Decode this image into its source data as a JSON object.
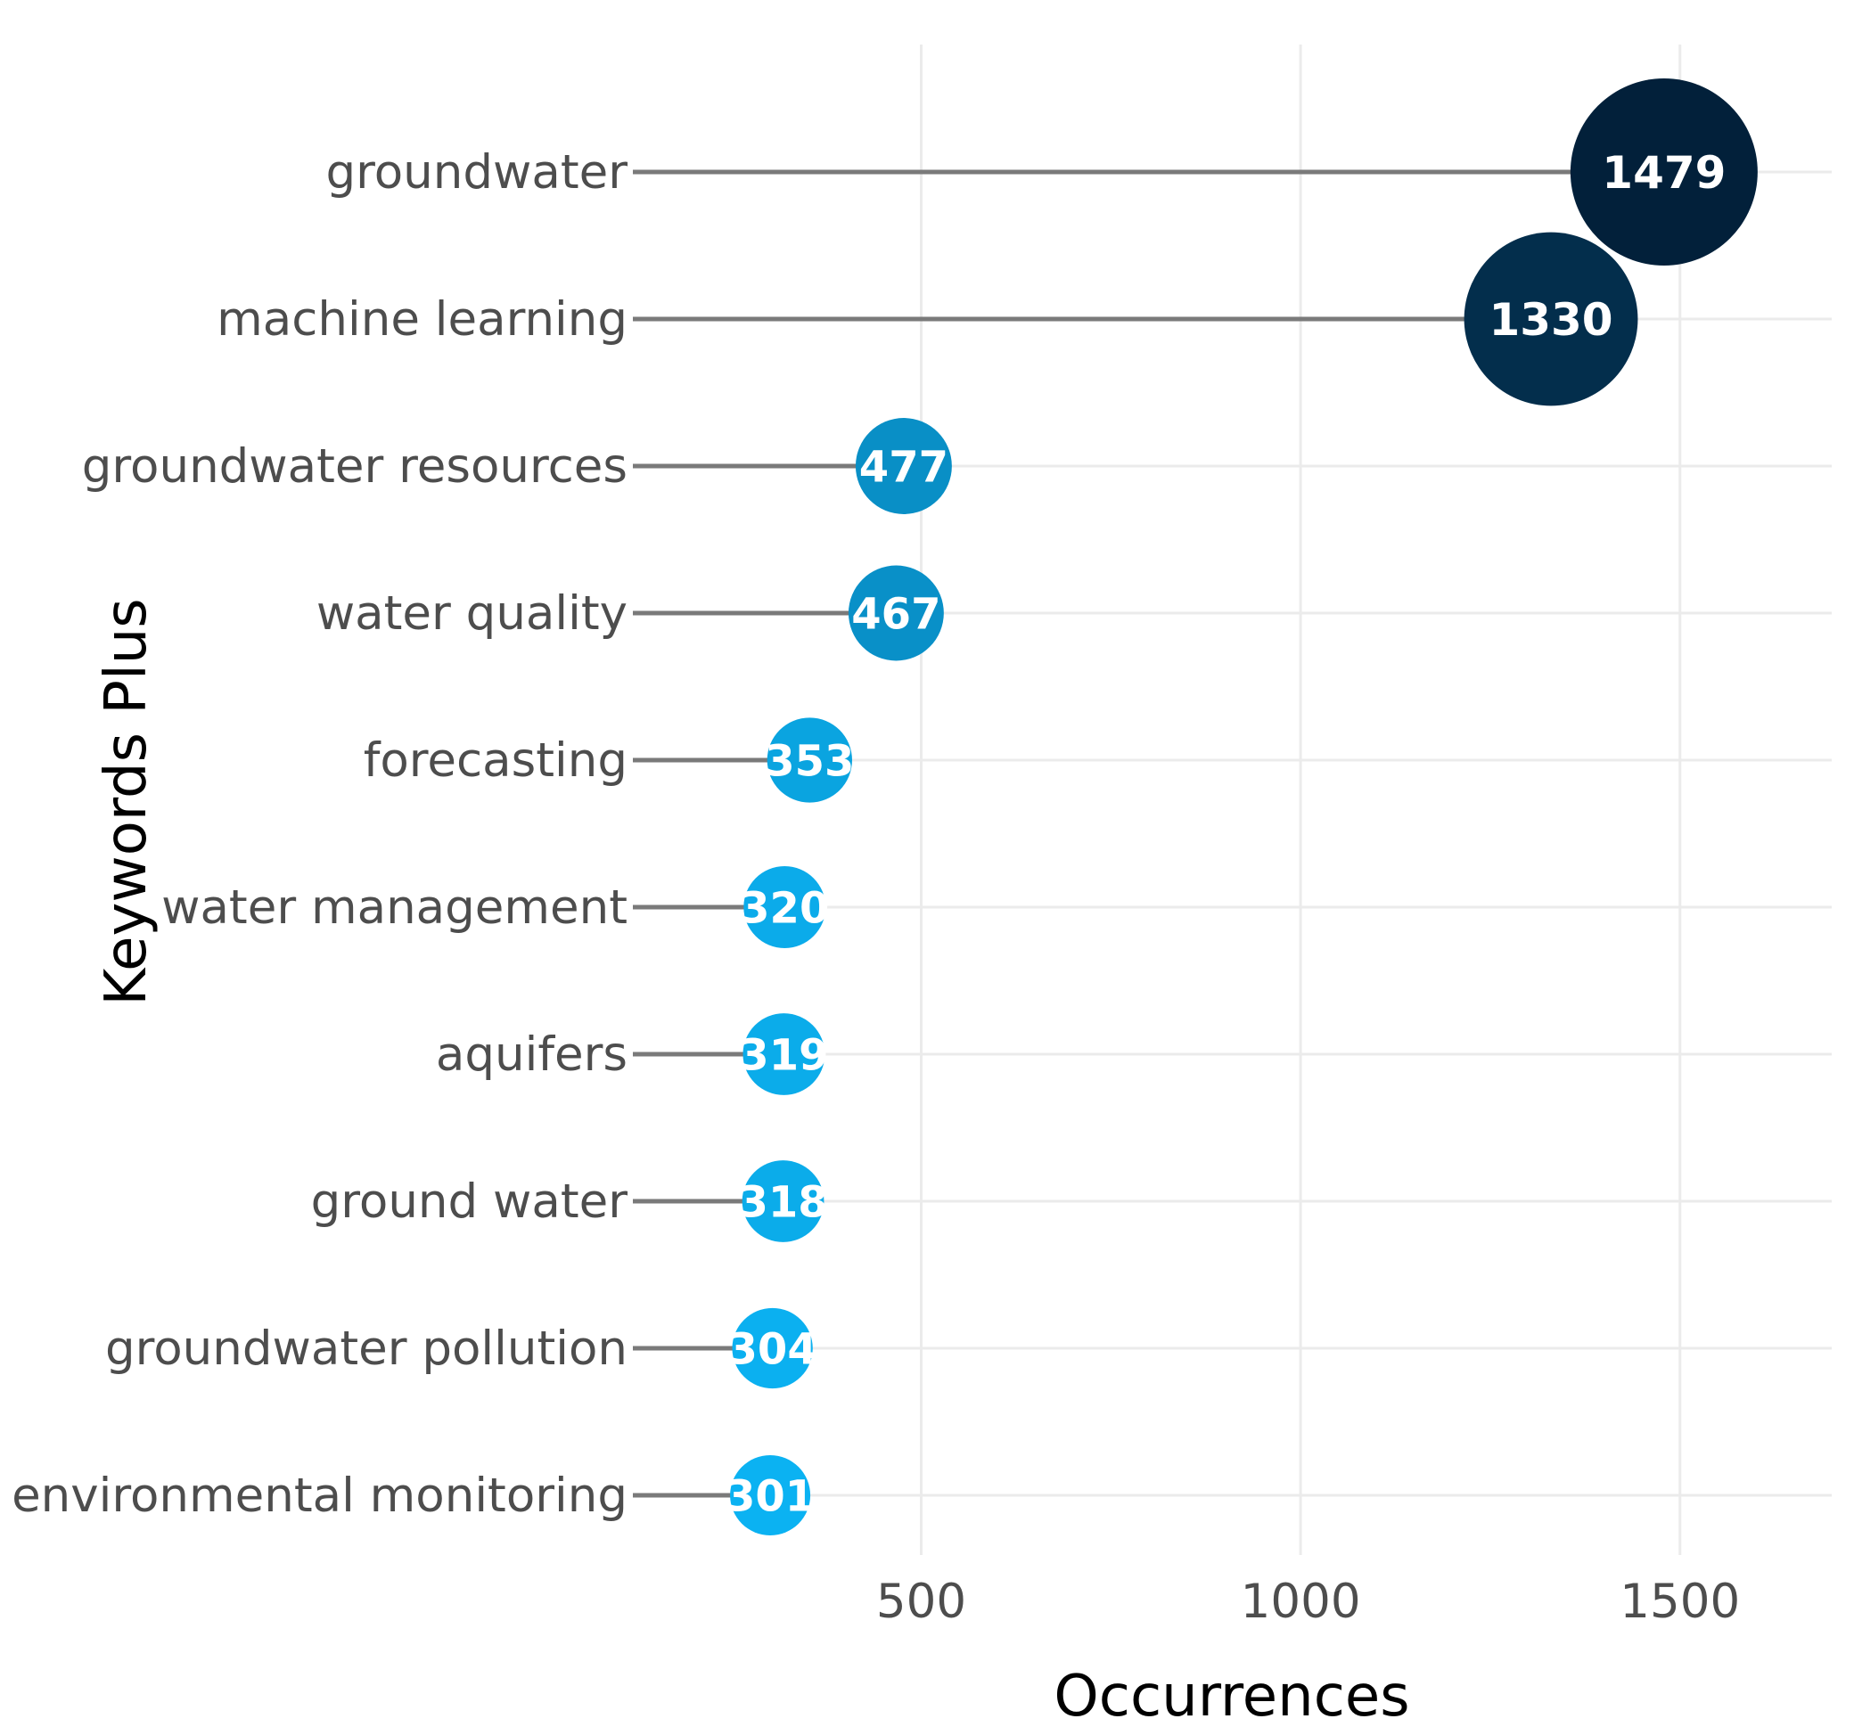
{
  "chart_data": {
    "type": "scatter",
    "subtype": "lollipop",
    "title": "",
    "xlabel": "Occurrences",
    "ylabel": "Keywords Plus",
    "xlim": [
      120,
      1700
    ],
    "xticks": [
      500,
      1000,
      1500
    ],
    "grid": true,
    "legend": "none",
    "categories": [
      "groundwater",
      "machine learning",
      "groundwater resources",
      "water quality",
      "forecasting",
      "water management",
      "aquifers",
      "ground water",
      "groundwater pollution",
      "environmental monitoring"
    ],
    "values": [
      1479,
      1330,
      477,
      467,
      353,
      320,
      319,
      318,
      304,
      301
    ],
    "data_labels": [
      "1479",
      "1330",
      "477",
      "467",
      "353",
      "320",
      "319",
      "318",
      "304",
      "301"
    ]
  },
  "colors": {
    "low": "#0bb2f2",
    "high": "#02203a",
    "stem": "#7a7a7a",
    "grid": "#ebebeb"
  }
}
